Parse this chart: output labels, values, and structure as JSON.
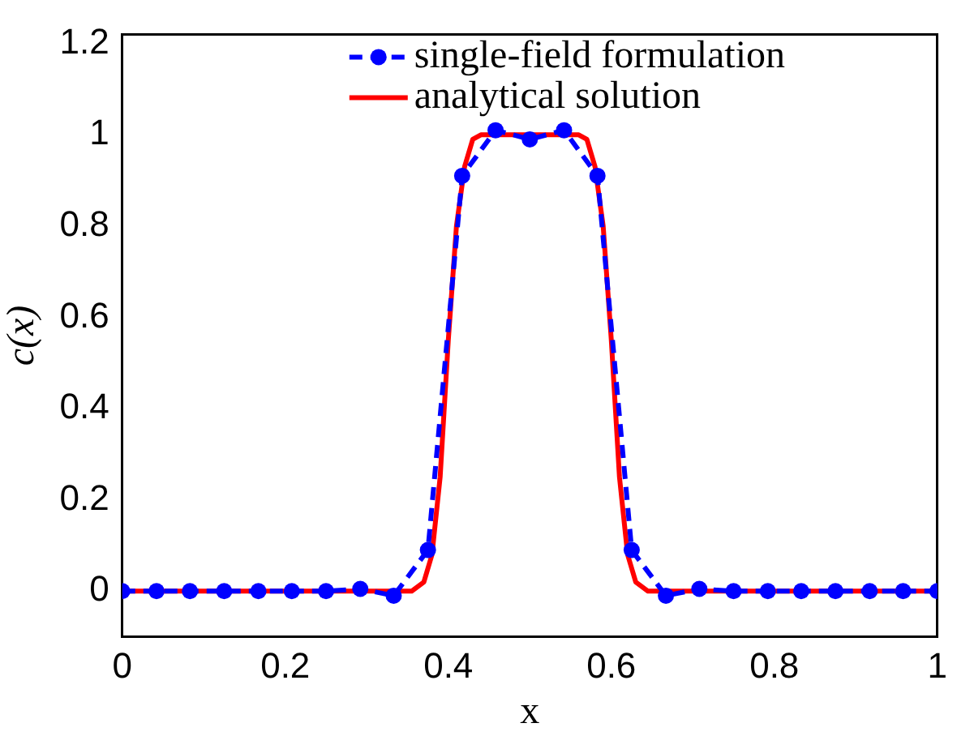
{
  "chart_data": {
    "type": "line",
    "xlabel": "x",
    "ylabel": "c(x)",
    "xlim": [
      0,
      1
    ],
    "xticks": [
      0,
      0.2,
      0.4,
      0.6,
      0.8,
      1
    ],
    "ylim": [
      -0.1,
      1.22
    ],
    "yticks": [
      0,
      0.2,
      0.4,
      0.6,
      0.8,
      1,
      1.2
    ],
    "grid": false,
    "legend": "top",
    "series": [
      {
        "name": "single-field formulation",
        "color": "#0000ff",
        "marker": "circle",
        "line_style": "dashed",
        "x": [
          0,
          0.042,
          0.083,
          0.125,
          0.167,
          0.208,
          0.25,
          0.292,
          0.333,
          0.375,
          0.417,
          0.458,
          0.5,
          0.542,
          0.583,
          0.625,
          0.667,
          0.708,
          0.75,
          0.792,
          0.833,
          0.875,
          0.917,
          0.958,
          1
        ],
        "values": [
          0,
          0,
          0,
          0,
          0,
          0,
          0,
          0.005,
          -0.01,
          0.09,
          0.91,
          1.01,
          0.99,
          1.01,
          0.91,
          0.09,
          -0.01,
          0.005,
          0,
          0,
          0,
          0,
          0,
          0,
          0
        ]
      },
      {
        "name": "analytical solution",
        "color": "#ff0000",
        "marker": "none",
        "line_style": "solid",
        "x": [
          0,
          0.355,
          0.37,
          0.38,
          0.39,
          0.4,
          0.41,
          0.42,
          0.43,
          0.44,
          0.56,
          0.57,
          0.58,
          0.59,
          0.6,
          0.61,
          0.62,
          0.63,
          0.645,
          1
        ],
        "values": [
          0,
          0,
          0.02,
          0.08,
          0.25,
          0.55,
          0.8,
          0.93,
          0.99,
          1,
          1,
          0.99,
          0.93,
          0.8,
          0.55,
          0.25,
          0.08,
          0.02,
          0,
          0
        ]
      }
    ]
  }
}
